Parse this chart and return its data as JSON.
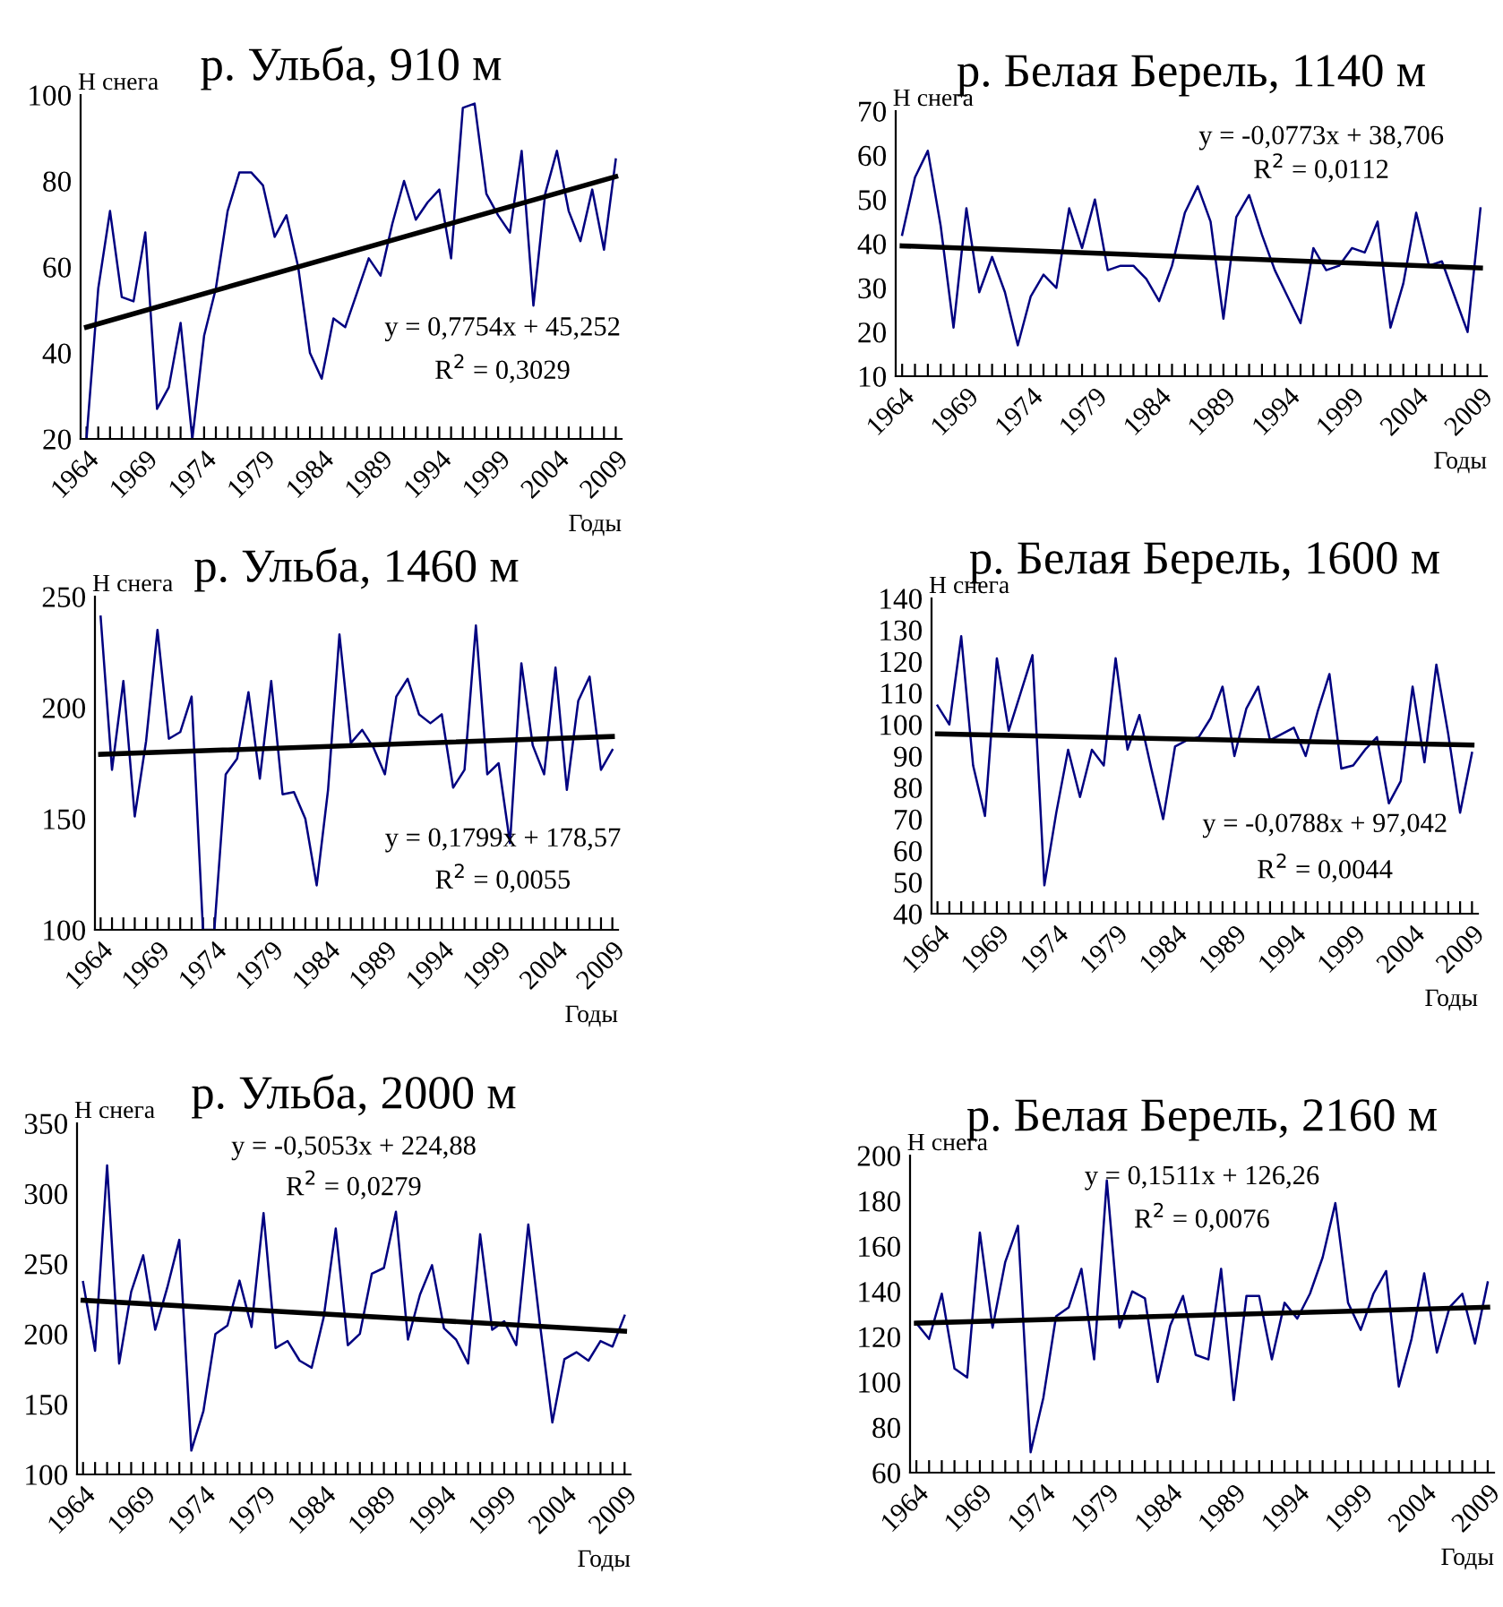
{
  "chart_data": [
    {
      "type": "line",
      "title": "р. Ульба, 910 м",
      "xlabel": "Годы",
      "ylabel": "H снега",
      "categories": [
        "1964",
        null,
        null,
        null,
        null,
        "1969",
        null,
        null,
        null,
        null,
        "1974",
        null,
        null,
        null,
        null,
        "1979",
        null,
        null,
        null,
        null,
        "1984",
        null,
        null,
        null,
        null,
        "1989",
        null,
        null,
        null,
        null,
        "1994",
        null,
        null,
        null,
        null,
        "1999",
        null,
        null,
        null,
        null,
        "2004",
        null,
        null,
        null,
        null,
        "2009"
      ],
      "ylim": [
        20,
        100
      ],
      "yticks": [
        20,
        40,
        60,
        80,
        100
      ],
      "series": [
        {
          "color": "#000080",
          "values": [
            20,
            55,
            73,
            53,
            52,
            68,
            27,
            32,
            47,
            20,
            44,
            55,
            73,
            82,
            82,
            79,
            67,
            72,
            60,
            40,
            34,
            48,
            46,
            54,
            62,
            58,
            70,
            80,
            71,
            75,
            78,
            62,
            97,
            98,
            77,
            72,
            68,
            87,
            51,
            77,
            87,
            73,
            66,
            78,
            64,
            85
          ]
        },
        {
          "type": "line",
          "color": "#000000",
          "values": [
            46,
            null,
            null,
            null,
            null,
            null,
            null,
            null,
            null,
            null,
            null,
            null,
            null,
            null,
            null,
            null,
            null,
            null,
            null,
            null,
            null,
            null,
            null,
            null,
            null,
            null,
            null,
            null,
            null,
            null,
            null,
            null,
            null,
            null,
            null,
            null,
            null,
            null,
            null,
            null,
            null,
            null,
            null,
            null,
            null,
            81
          ]
        }
      ],
      "annotations": [
        "y = 0,7754x + 45,252",
        "R$^{2}$ = 0,3029"
      ]
    },
    {
      "type": "line",
      "title": "р. Белая Берель, 1140 м",
      "xlabel": "Годы",
      "ylabel": "H снега",
      "categories": [
        "1964",
        null,
        null,
        null,
        null,
        "1969",
        null,
        null,
        null,
        null,
        "1974",
        null,
        null,
        null,
        null,
        "1979",
        null,
        null,
        null,
        null,
        "1984",
        null,
        null,
        null,
        null,
        "1989",
        null,
        null,
        null,
        null,
        "1994",
        null,
        null,
        null,
        null,
        "1999",
        null,
        null,
        null,
        null,
        "2004",
        null,
        null,
        null,
        null,
        "2009"
      ],
      "ylim": [
        10,
        70
      ],
      "yticks": [
        10,
        20,
        30,
        40,
        50,
        60,
        70
      ],
      "series": [
        {
          "color": "#000080",
          "values": [
            42,
            55,
            61,
            44,
            21,
            48,
            29,
            37,
            29,
            17,
            28,
            33,
            30,
            48,
            39,
            50,
            34,
            35,
            35,
            32,
            27,
            35,
            47,
            53,
            45,
            23,
            46,
            51,
            42,
            34,
            28,
            22,
            39,
            34,
            35,
            39,
            38,
            45,
            21,
            31,
            47,
            35,
            36,
            28,
            20,
            48
          ]
        },
        {
          "type": "line",
          "color": "#000000",
          "values": [
            39.5,
            null,
            null,
            null,
            null,
            null,
            null,
            null,
            null,
            null,
            null,
            null,
            null,
            null,
            null,
            null,
            null,
            null,
            null,
            null,
            null,
            null,
            null,
            null,
            null,
            null,
            null,
            null,
            null,
            null,
            null,
            null,
            null,
            null,
            null,
            null,
            null,
            null,
            null,
            null,
            null,
            null,
            null,
            null,
            null,
            34.5
          ]
        }
      ],
      "annotations": [
        "y = -0,0773x + 38,706",
        "R$^{2}$ = 0,0112"
      ]
    },
    {
      "type": "line",
      "title": "р. Ульба, 1460 м",
      "xlabel": "Годы",
      "ylabel": "H снега",
      "categories": [
        "1964",
        null,
        null,
        null,
        null,
        "1969",
        null,
        null,
        null,
        null,
        "1974",
        null,
        null,
        null,
        null,
        "1979",
        null,
        null,
        null,
        null,
        "1984",
        null,
        null,
        null,
        null,
        "1989",
        null,
        null,
        null,
        null,
        "1994",
        null,
        null,
        null,
        null,
        "1999",
        null,
        null,
        null,
        null,
        "2004",
        null,
        null,
        null,
        null,
        "2009"
      ],
      "ylim": [
        100,
        250
      ],
      "yticks": [
        100,
        150,
        200,
        250
      ],
      "series": [
        {
          "color": "#000080",
          "values": [
            241,
            172,
            212,
            151,
            185,
            235,
            186,
            189,
            205,
            100,
            100,
            170,
            177,
            207,
            168,
            212,
            161,
            162,
            150,
            120,
            163,
            233,
            184,
            190,
            182,
            170,
            205,
            213,
            197,
            193,
            197,
            164,
            172,
            237,
            170,
            175,
            139,
            220,
            183,
            170,
            218,
            163,
            203,
            214,
            172,
            181
          ]
        },
        {
          "type": "line",
          "color": "#000000",
          "values": [
            179,
            null,
            null,
            null,
            null,
            null,
            null,
            null,
            null,
            null,
            null,
            null,
            null,
            null,
            null,
            null,
            null,
            null,
            null,
            null,
            null,
            null,
            null,
            null,
            null,
            null,
            null,
            null,
            null,
            null,
            null,
            null,
            null,
            null,
            null,
            null,
            null,
            null,
            null,
            null,
            null,
            null,
            null,
            null,
            null,
            187
          ]
        }
      ],
      "annotations": [
        "y = 0,1799x + 178,57",
        "R$^{2}$ = 0,0055"
      ]
    },
    {
      "type": "line",
      "title": "р. Белая Берель, 1600 м",
      "xlabel": "Годы",
      "ylabel": "H снега",
      "categories": [
        "1964",
        null,
        null,
        null,
        null,
        "1969",
        null,
        null,
        null,
        null,
        "1974",
        null,
        null,
        null,
        null,
        "1979",
        null,
        null,
        null,
        null,
        "1984",
        null,
        null,
        null,
        null,
        "1989",
        null,
        null,
        null,
        null,
        "1994",
        null,
        null,
        null,
        null,
        "1999",
        null,
        null,
        null,
        null,
        "2004",
        null,
        null,
        null,
        null,
        "2009"
      ],
      "ylim": [
        40,
        140
      ],
      "yticks": [
        40,
        50,
        60,
        70,
        80,
        90,
        100,
        110,
        120,
        130,
        140
      ],
      "series": [
        {
          "color": "#000080",
          "values": [
            106,
            100,
            128,
            87,
            71,
            121,
            98,
            110,
            122,
            49,
            72,
            92,
            77,
            92,
            87,
            121,
            92,
            103,
            86,
            70,
            93,
            95,
            96,
            102,
            112,
            90,
            105,
            112,
            95,
            97,
            99,
            90,
            104,
            116,
            86,
            87,
            92,
            96,
            75,
            82,
            112,
            88,
            119,
            97,
            72,
            91
          ]
        },
        {
          "type": "line",
          "color": "#000000",
          "values": [
            97,
            null,
            null,
            null,
            null,
            null,
            null,
            null,
            null,
            null,
            null,
            null,
            null,
            null,
            null,
            null,
            null,
            null,
            null,
            null,
            null,
            null,
            null,
            null,
            null,
            null,
            null,
            null,
            null,
            null,
            null,
            null,
            null,
            null,
            null,
            null,
            null,
            null,
            null,
            null,
            null,
            null,
            null,
            null,
            null,
            93.5
          ]
        }
      ],
      "annotations": [
        "y = -0,0788x + 97,042",
        "R$^{2}$ = 0,0044"
      ]
    },
    {
      "type": "line",
      "title": "р. Ульба, 2000 м",
      "xlabel": "Годы",
      "ylabel": "H снега",
      "categories": [
        "1964",
        null,
        null,
        null,
        null,
        "1969",
        null,
        null,
        null,
        null,
        "1974",
        null,
        null,
        null,
        null,
        "1979",
        null,
        null,
        null,
        null,
        "1984",
        null,
        null,
        null,
        null,
        "1989",
        null,
        null,
        null,
        null,
        "1994",
        null,
        null,
        null,
        null,
        "1999",
        null,
        null,
        null,
        null,
        "2004",
        null,
        null,
        null,
        null,
        "2009"
      ],
      "ylim": [
        100,
        350
      ],
      "yticks": [
        100,
        150,
        200,
        250,
        300,
        350
      ],
      "series": [
        {
          "color": "#000080",
          "values": [
            237,
            188,
            320,
            179,
            230,
            256,
            203,
            233,
            267,
            117,
            145,
            200,
            206,
            238,
            205,
            286,
            190,
            195,
            181,
            176,
            212,
            275,
            192,
            200,
            243,
            247,
            287,
            196,
            228,
            249,
            204,
            196,
            179,
            271,
            203,
            209,
            192,
            278,
            205,
            137,
            182,
            187,
            181,
            195,
            191,
            213
          ]
        },
        {
          "type": "line",
          "color": "#000000",
          "values": [
            224,
            null,
            null,
            null,
            null,
            null,
            null,
            null,
            null,
            null,
            null,
            null,
            null,
            null,
            null,
            null,
            null,
            null,
            null,
            null,
            null,
            null,
            null,
            null,
            null,
            null,
            null,
            null,
            null,
            null,
            null,
            null,
            null,
            null,
            null,
            null,
            null,
            null,
            null,
            null,
            null,
            null,
            null,
            null,
            null,
            202
          ]
        }
      ],
      "annotations": [
        "y = -0,5053x + 224,88",
        "R$^{2}$ = 0,0279"
      ]
    },
    {
      "type": "line",
      "title": "р. Белая Берель, 2160 м",
      "xlabel": "Годы",
      "ylabel": "H снега",
      "categories": [
        "1964",
        null,
        null,
        null,
        null,
        "1969",
        null,
        null,
        null,
        null,
        "1974",
        null,
        null,
        null,
        null,
        "1979",
        null,
        null,
        null,
        null,
        "1984",
        null,
        null,
        null,
        null,
        "1989",
        null,
        null,
        null,
        null,
        "1994",
        null,
        null,
        null,
        null,
        "1999",
        null,
        null,
        null,
        null,
        "2004",
        null,
        null,
        null,
        null,
        "2009"
      ],
      "ylim": [
        60,
        200
      ],
      "yticks": [
        60,
        80,
        100,
        120,
        140,
        160,
        180,
        200
      ],
      "series": [
        {
          "color": "#000080",
          "values": [
            126,
            119,
            139,
            106,
            102,
            166,
            124,
            153,
            169,
            69,
            93,
            129,
            133,
            150,
            110,
            189,
            124,
            140,
            137,
            100,
            125,
            138,
            112,
            110,
            150,
            92,
            138,
            138,
            110,
            135,
            128,
            139,
            155,
            179,
            135,
            123,
            139,
            149,
            98,
            119,
            148,
            113,
            133,
            139,
            117,
            144
          ]
        },
        {
          "type": "line",
          "color": "#000000",
          "values": [
            126,
            null,
            null,
            null,
            null,
            null,
            null,
            null,
            null,
            null,
            null,
            null,
            null,
            null,
            null,
            null,
            null,
            null,
            null,
            null,
            null,
            null,
            null,
            null,
            null,
            null,
            null,
            null,
            null,
            null,
            null,
            null,
            null,
            null,
            null,
            null,
            null,
            null,
            null,
            null,
            null,
            null,
            null,
            null,
            null,
            133
          ]
        }
      ],
      "annotations": [
        "y = 0,1511x + 126,26",
        "R$^{2}$ = 0,0076"
      ]
    }
  ]
}
